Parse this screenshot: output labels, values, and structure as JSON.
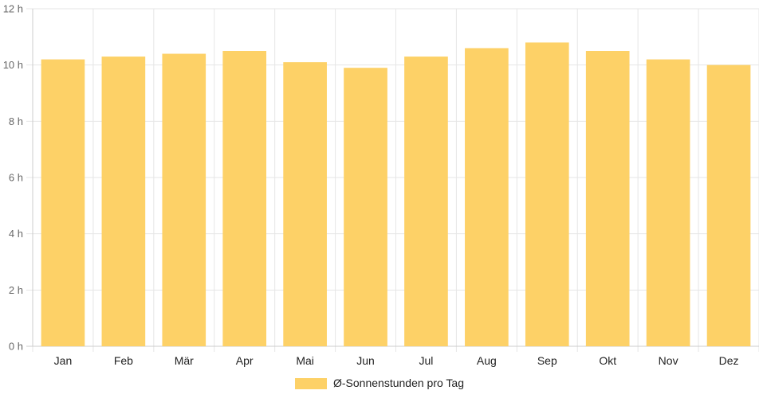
{
  "chart_data": {
    "type": "bar",
    "categories": [
      "Jan",
      "Feb",
      "Mär",
      "Apr",
      "Mai",
      "Jun",
      "Jul",
      "Aug",
      "Sep",
      "Okt",
      "Nov",
      "Dez"
    ],
    "series": [
      {
        "name": "Ø-Sonnenstunden pro Tag",
        "values": [
          10.2,
          10.3,
          10.4,
          10.5,
          10.1,
          9.9,
          10.3,
          10.6,
          10.8,
          10.5,
          10.2,
          10.0
        ],
        "color": "#fdd167"
      }
    ],
    "y_ticks": [
      "0 h",
      "2 h",
      "4 h",
      "6 h",
      "8 h",
      "10 h",
      "12 h"
    ],
    "ylim": [
      0,
      12
    ],
    "grid": true,
    "legend_position": "bottom",
    "colors": {
      "grid": "#e6e6e6",
      "axis": "#cccccc",
      "text": "#666666",
      "label": "#222222"
    }
  }
}
